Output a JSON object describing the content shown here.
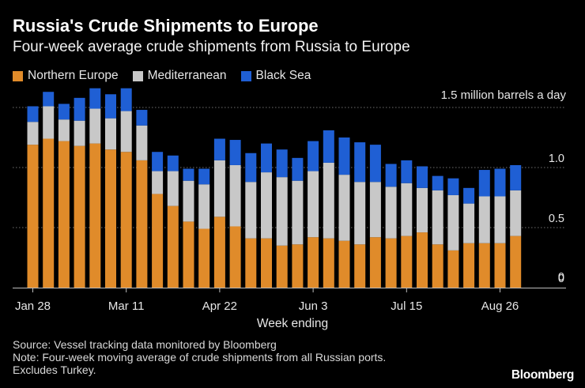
{
  "header": {
    "title": "Russia's Crude Shipments to Europe",
    "subtitle": "Four-week average crude shipments from Russia to Europe"
  },
  "notes": {
    "source": "Source: Vessel tracking data monitored by Bloomberg",
    "note_line1": "Note: Four-week moving average of crude shipments from all Russian ports.",
    "note_line2": "Excludes Turkey."
  },
  "brand": "Bloomberg",
  "colors": {
    "northern_europe": "#e08b2a",
    "mediterranean": "#c8c8c8",
    "black_sea": "#1f5fd4",
    "background": "#000000",
    "gridline": "#6e6e6e"
  },
  "chart_data": {
    "type": "bar",
    "stacked": true,
    "unit_label": "1.5 million barrels a day",
    "xlabel": "Week ending",
    "ylabel": "",
    "ylim": [
      0,
      1.5
    ],
    "yticks": [
      {
        "value": 1.5,
        "label": ""
      },
      {
        "value": 1.0,
        "label": "1.0"
      },
      {
        "value": 0.5,
        "label": "0.5"
      },
      {
        "value": 0,
        "label": "0"
      }
    ],
    "xtick_labels": [
      {
        "index": 0,
        "label": "Jan 28"
      },
      {
        "index": 6,
        "label": "Mar 11"
      },
      {
        "index": 12,
        "label": "Apr 22"
      },
      {
        "index": 18,
        "label": "Jun 3"
      },
      {
        "index": 24,
        "label": "Jul 15"
      },
      {
        "index": 30,
        "label": "Aug 26"
      }
    ],
    "grid": true,
    "legend_position": "top-left",
    "series": [
      {
        "name": "Northern Europe",
        "color": "#e08b2a",
        "values": [
          1.19,
          1.24,
          1.22,
          1.18,
          1.2,
          1.15,
          1.13,
          1.06,
          0.78,
          0.68,
          0.55,
          0.49,
          0.59,
          0.51,
          0.41,
          0.41,
          0.35,
          0.36,
          0.42,
          0.41,
          0.39,
          0.36,
          0.42,
          0.41,
          0.43,
          0.46,
          0.36,
          0.31,
          0.37,
          0.37,
          0.37,
          0.43
        ]
      },
      {
        "name": "Mediterranean",
        "color": "#c8c8c8",
        "values": [
          0.19,
          0.27,
          0.18,
          0.21,
          0.29,
          0.26,
          0.34,
          0.29,
          0.19,
          0.29,
          0.34,
          0.37,
          0.47,
          0.51,
          0.47,
          0.55,
          0.57,
          0.53,
          0.55,
          0.63,
          0.55,
          0.52,
          0.46,
          0.43,
          0.44,
          0.37,
          0.45,
          0.46,
          0.33,
          0.39,
          0.39,
          0.38
        ]
      },
      {
        "name": "Black Sea",
        "color": "#1f5fd4",
        "values": [
          0.13,
          0.12,
          0.13,
          0.19,
          0.17,
          0.2,
          0.19,
          0.13,
          0.16,
          0.13,
          0.1,
          0.13,
          0.18,
          0.21,
          0.24,
          0.24,
          0.23,
          0.19,
          0.25,
          0.27,
          0.31,
          0.33,
          0.31,
          0.19,
          0.19,
          0.18,
          0.12,
          0.14,
          0.13,
          0.22,
          0.23,
          0.21
        ]
      }
    ]
  }
}
